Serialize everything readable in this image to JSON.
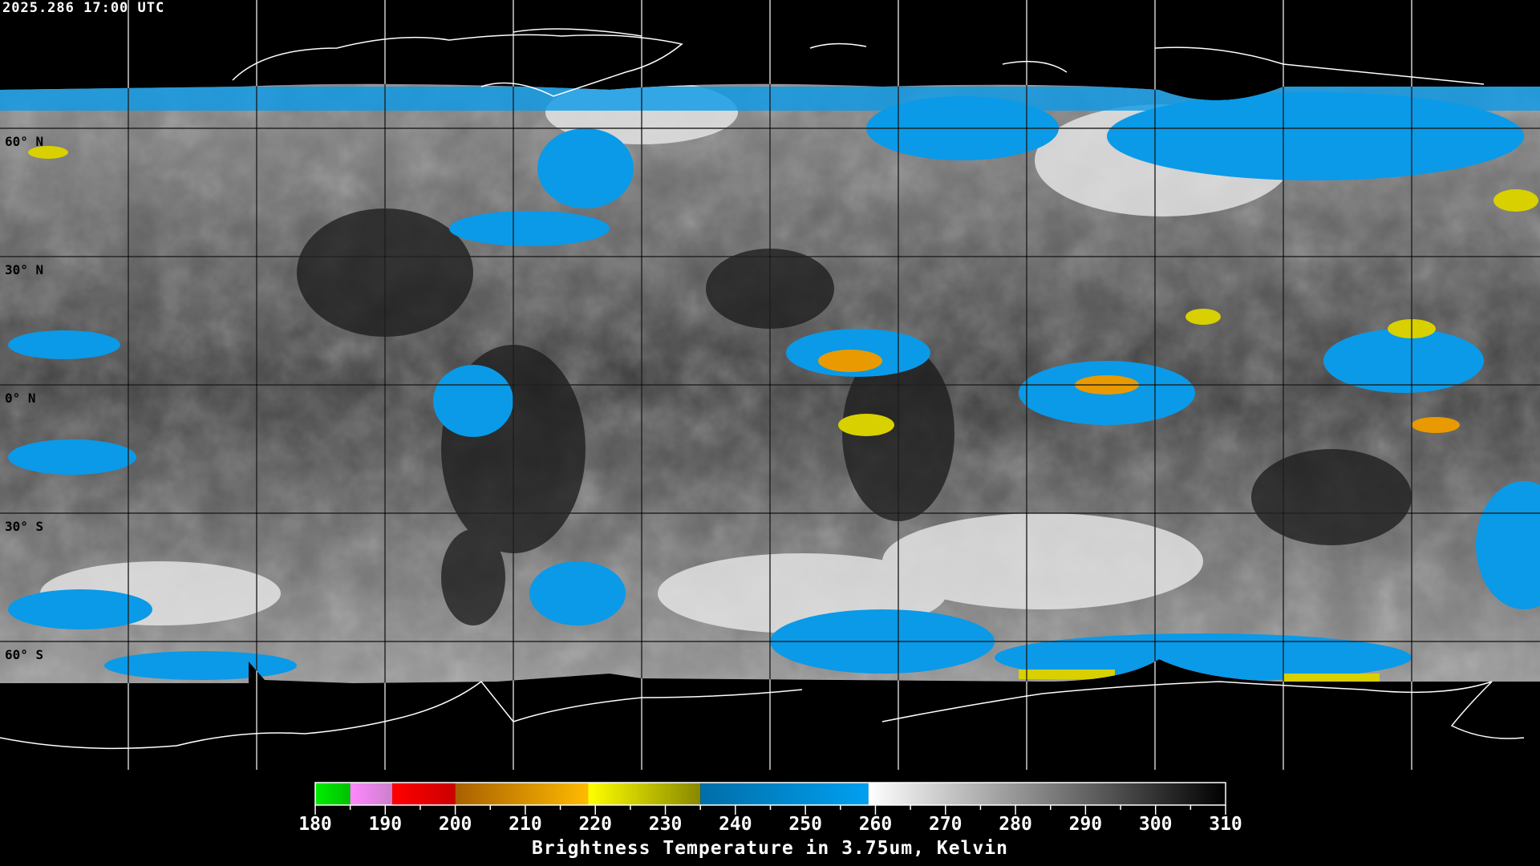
{
  "header": {
    "timestamp": "2025.286 17:00 UTC"
  },
  "map": {
    "projection": "equirectangular",
    "lat_labels": [
      "60° N",
      "30° N",
      "0° N",
      "30° S",
      "60° S"
    ],
    "colors": {
      "cloud_blue": "#0a9ae8",
      "cold_yellow": "#d8d000",
      "deep_orange": "#e89a00",
      "background": "#000000",
      "coastline": "#ffffff"
    }
  },
  "colorbar": {
    "min": 180,
    "max": 310,
    "tick_labels": [
      "180",
      "190",
      "200",
      "210",
      "220",
      "230",
      "240",
      "250",
      "260",
      "270",
      "280",
      "290",
      "300",
      "310"
    ],
    "title": "Brightness Temperature in 3.75um, Kelvin",
    "segments": [
      {
        "from": 180,
        "to": 185,
        "c1": "#00ee00",
        "c2": "#00c000"
      },
      {
        "from": 185,
        "to": 191,
        "c1": "#ff88ff",
        "c2": "#cc80cc"
      },
      {
        "from": 191,
        "to": 200,
        "c1": "#ff0000",
        "c2": "#cc0000"
      },
      {
        "from": 200,
        "to": 219,
        "c1": "#a86000",
        "c2": "#ffbb00"
      },
      {
        "from": 219,
        "to": 235,
        "c1": "#ffff00",
        "c2": "#888800"
      },
      {
        "from": 235,
        "to": 259,
        "c1": "#006ea8",
        "c2": "#00a0f0"
      },
      {
        "from": 259,
        "to": 310,
        "c1": "#ffffff",
        "c2": "#000000"
      }
    ]
  }
}
